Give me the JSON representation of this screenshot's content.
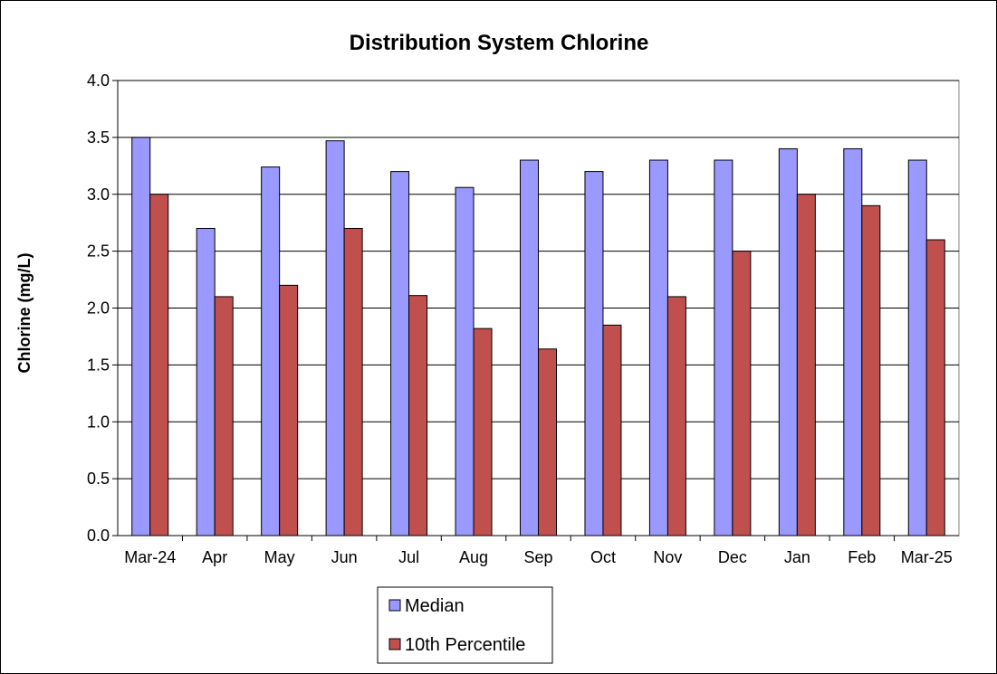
{
  "chart_data": {
    "type": "bar",
    "title": "Distribution System Chlorine",
    "xlabel": "",
    "ylabel": "Chlorine (mg/L)",
    "ylim": [
      0,
      4.0
    ],
    "yticks": [
      "0.0",
      "0.5",
      "1.0",
      "1.5",
      "2.0",
      "2.5",
      "3.0",
      "3.5",
      "4.0"
    ],
    "grid": "horizontal",
    "legend_position": "bottom",
    "categories": [
      "Mar-24",
      "Apr",
      "May",
      "Jun",
      "Jul",
      "Aug",
      "Sep",
      "Oct",
      "Nov",
      "Dec",
      "Jan",
      "Feb",
      "Mar-25"
    ],
    "series": [
      {
        "name": "Median",
        "color": "#9999FF",
        "values": [
          3.5,
          2.7,
          3.24,
          3.47,
          3.2,
          3.06,
          3.3,
          3.2,
          3.3,
          3.3,
          3.4,
          3.4,
          3.3
        ]
      },
      {
        "name": "10th Percentile",
        "color": "#C0504D",
        "values": [
          3.0,
          2.1,
          2.2,
          2.7,
          2.11,
          1.82,
          1.64,
          1.85,
          2.1,
          2.5,
          3.0,
          2.9,
          2.6
        ]
      }
    ]
  }
}
